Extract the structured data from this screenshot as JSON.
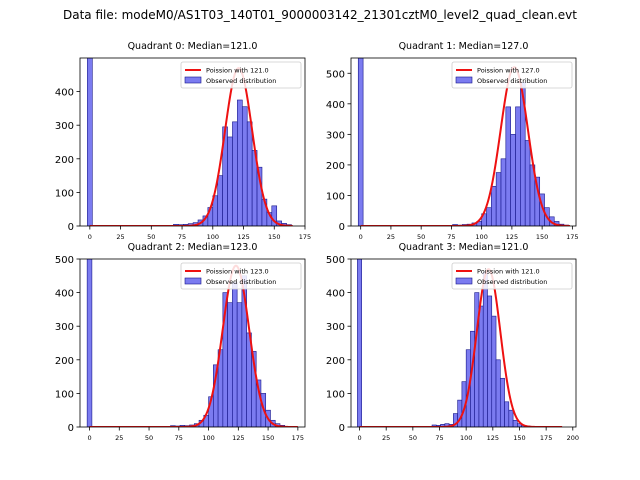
{
  "figure": {
    "suptitle": "Data file: modeM0/AS1T03_140T01_9000003142_21301cztM0_level2_quad_clean.evt"
  },
  "colors": {
    "bar_fill": "#7b7bf0",
    "bar_edge": "#16168a",
    "poisson": "#ee1111",
    "legend_bar": "#7b7bf0"
  },
  "chart_data": [
    {
      "type": "bar",
      "title": "Quadrant 0: Median=121.0",
      "legend": [
        "Poission with 121.0",
        "Observed distribution"
      ],
      "legend_position": "top-right",
      "bin_width": 4,
      "xlim": [
        -8,
        175
      ],
      "ylim": [
        0,
        500
      ],
      "xticks": [
        0,
        25,
        50,
        75,
        100,
        125,
        150,
        175
      ],
      "yticks": [
        0,
        100,
        200,
        300,
        400
      ],
      "zero_bin": {
        "x": 0,
        "value": 500
      },
      "bins": [
        {
          "x": 68,
          "value": 5
        },
        {
          "x": 72,
          "value": 4
        },
        {
          "x": 76,
          "value": 5
        },
        {
          "x": 80,
          "value": 7
        },
        {
          "x": 84,
          "value": 10
        },
        {
          "x": 88,
          "value": 18
        },
        {
          "x": 92,
          "value": 30
        },
        {
          "x": 96,
          "value": 55
        },
        {
          "x": 100,
          "value": 90
        },
        {
          "x": 104,
          "value": 150
        },
        {
          "x": 108,
          "value": 295
        },
        {
          "x": 112,
          "value": 265
        },
        {
          "x": 116,
          "value": 310
        },
        {
          "x": 120,
          "value": 375
        },
        {
          "x": 124,
          "value": 355
        },
        {
          "x": 128,
          "value": 310
        },
        {
          "x": 132,
          "value": 225
        },
        {
          "x": 136,
          "value": 175
        },
        {
          "x": 140,
          "value": 80
        },
        {
          "x": 144,
          "value": 40
        },
        {
          "x": 148,
          "value": 60
        },
        {
          "x": 152,
          "value": 15
        },
        {
          "x": 156,
          "value": 8
        },
        {
          "x": 160,
          "value": 4
        }
      ],
      "poisson": {
        "mean": 121.0,
        "peak": 470,
        "x_range": [
          0,
          165
        ]
      }
    },
    {
      "type": "bar",
      "title": "Quadrant 1: Median=127.0",
      "legend": [
        "Poission with 127.0",
        "Observed distribution"
      ],
      "legend_position": "top-right",
      "bin_width": 4,
      "xlim": [
        -8,
        178
      ],
      "ylim": [
        0,
        550
      ],
      "xticks": [
        0,
        25,
        50,
        75,
        100,
        125,
        150,
        175
      ],
      "yticks": [
        0,
        100,
        200,
        300,
        400,
        500
      ],
      "zero_bin": {
        "x": 0,
        "value": 550
      },
      "bins": [
        {
          "x": 76,
          "value": 5
        },
        {
          "x": 80,
          "value": 3
        },
        {
          "x": 84,
          "value": 5
        },
        {
          "x": 88,
          "value": 6
        },
        {
          "x": 92,
          "value": 10
        },
        {
          "x": 96,
          "value": 15
        },
        {
          "x": 100,
          "value": 40
        },
        {
          "x": 104,
          "value": 60
        },
        {
          "x": 108,
          "value": 130
        },
        {
          "x": 112,
          "value": 175
        },
        {
          "x": 116,
          "value": 220
        },
        {
          "x": 120,
          "value": 390
        },
        {
          "x": 124,
          "value": 300
        },
        {
          "x": 128,
          "value": 390
        },
        {
          "x": 132,
          "value": 470
        },
        {
          "x": 136,
          "value": 280
        },
        {
          "x": 140,
          "value": 200
        },
        {
          "x": 144,
          "value": 160
        },
        {
          "x": 148,
          "value": 105
        },
        {
          "x": 152,
          "value": 60
        },
        {
          "x": 156,
          "value": 30
        },
        {
          "x": 160,
          "value": 15
        },
        {
          "x": 164,
          "value": 6
        },
        {
          "x": 168,
          "value": 3
        }
      ],
      "poisson": {
        "mean": 127.0,
        "peak": 520,
        "x_range": [
          0,
          173
        ]
      }
    },
    {
      "type": "bar",
      "title": "Quadrant 2: Median=123.0",
      "legend": [
        "Poission with 123.0",
        "Observed distribution"
      ],
      "legend_position": "top-right",
      "bin_width": 4,
      "xlim": [
        -8,
        181
      ],
      "ylim": [
        0,
        500
      ],
      "xticks": [
        0,
        25,
        50,
        75,
        100,
        125,
        150,
        175
      ],
      "yticks": [
        0,
        100,
        200,
        300,
        400,
        500
      ],
      "zero_bin": {
        "x": 0,
        "value": 500
      },
      "bins": [
        {
          "x": 68,
          "value": 4
        },
        {
          "x": 72,
          "value": 3
        },
        {
          "x": 76,
          "value": 5
        },
        {
          "x": 80,
          "value": 4
        },
        {
          "x": 84,
          "value": 6
        },
        {
          "x": 88,
          "value": 10
        },
        {
          "x": 92,
          "value": 20
        },
        {
          "x": 96,
          "value": 35
        },
        {
          "x": 100,
          "value": 90
        },
        {
          "x": 104,
          "value": 185
        },
        {
          "x": 108,
          "value": 230
        },
        {
          "x": 112,
          "value": 400
        },
        {
          "x": 116,
          "value": 370
        },
        {
          "x": 120,
          "value": 430
        },
        {
          "x": 124,
          "value": 370
        },
        {
          "x": 128,
          "value": 450
        },
        {
          "x": 132,
          "value": 280
        },
        {
          "x": 136,
          "value": 225
        },
        {
          "x": 140,
          "value": 140
        },
        {
          "x": 144,
          "value": 100
        },
        {
          "x": 148,
          "value": 50
        },
        {
          "x": 152,
          "value": 20
        },
        {
          "x": 156,
          "value": 10
        },
        {
          "x": 160,
          "value": 5
        }
      ],
      "poisson": {
        "mean": 123.0,
        "peak": 480,
        "x_range": [
          0,
          175
        ]
      }
    },
    {
      "type": "bar",
      "title": "Quadrant 3: Median=121.0",
      "legend": [
        "Poission with 121.0",
        "Observed distribution"
      ],
      "legend_position": "top-right",
      "bin_width": 4,
      "xlim": [
        -8,
        203
      ],
      "ylim": [
        0,
        500
      ],
      "xticks": [
        0,
        25,
        50,
        75,
        100,
        125,
        150,
        175,
        200
      ],
      "yticks": [
        0,
        100,
        200,
        300,
        400,
        500
      ],
      "zero_bin": {
        "x": 0,
        "value": 500
      },
      "bins": [
        {
          "x": 68,
          "value": 6
        },
        {
          "x": 72,
          "value": 5
        },
        {
          "x": 76,
          "value": 8
        },
        {
          "x": 80,
          "value": 10
        },
        {
          "x": 84,
          "value": 8
        },
        {
          "x": 88,
          "value": 40
        },
        {
          "x": 92,
          "value": 80
        },
        {
          "x": 96,
          "value": 135
        },
        {
          "x": 100,
          "value": 230
        },
        {
          "x": 104,
          "value": 285
        },
        {
          "x": 108,
          "value": 400
        },
        {
          "x": 112,
          "value": 360
        },
        {
          "x": 116,
          "value": 460
        },
        {
          "x": 120,
          "value": 390
        },
        {
          "x": 124,
          "value": 330
        },
        {
          "x": 128,
          "value": 200
        },
        {
          "x": 132,
          "value": 145
        },
        {
          "x": 136,
          "value": 75
        },
        {
          "x": 140,
          "value": 50
        },
        {
          "x": 144,
          "value": 20
        },
        {
          "x": 148,
          "value": 10
        },
        {
          "x": 152,
          "value": 5
        },
        {
          "x": 156,
          "value": 3
        }
      ],
      "poisson": {
        "mean": 121.0,
        "peak": 470,
        "x_range": [
          0,
          190
        ]
      }
    }
  ]
}
